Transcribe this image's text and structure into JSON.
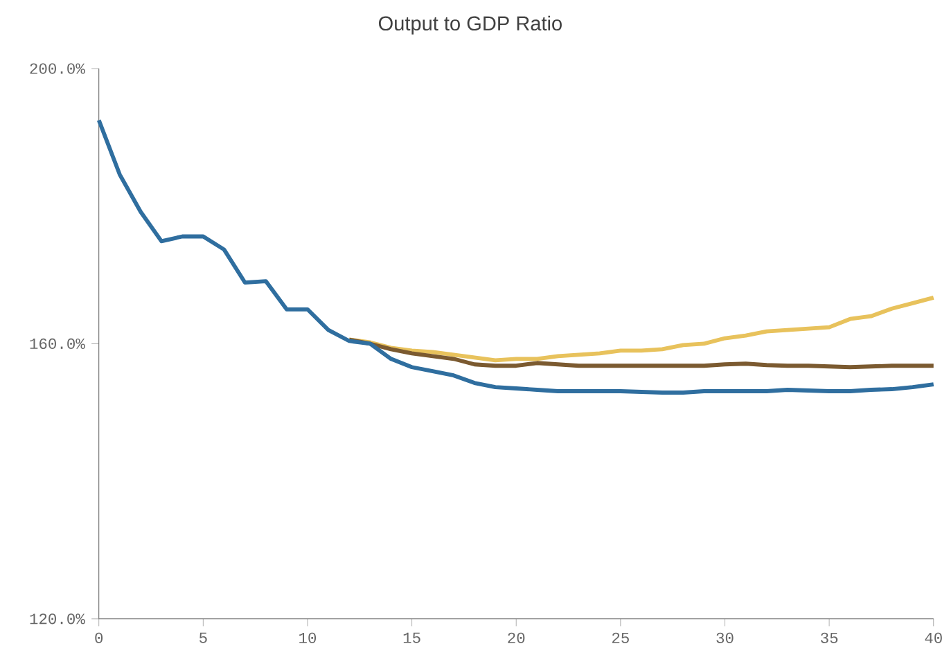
{
  "chart_data": {
    "type": "line",
    "title": "Output to GDP Ratio",
    "x": [
      0,
      1,
      2,
      3,
      4,
      5,
      6,
      7,
      8,
      9,
      10,
      11,
      12,
      13,
      14,
      15,
      16,
      17,
      18,
      19,
      20,
      21,
      22,
      23,
      24,
      25,
      26,
      27,
      28,
      29,
      30,
      31,
      32,
      33,
      34,
      35,
      36,
      37,
      38,
      39,
      40
    ],
    "series": [
      {
        "color": "#e8c25c",
        "values": [
          null,
          null,
          null,
          null,
          null,
          null,
          null,
          null,
          null,
          null,
          null,
          null,
          160.6,
          160.2,
          159.4,
          159,
          158.8,
          158.4,
          158,
          157.6,
          157.8,
          157.8,
          158.2,
          158.4,
          158.6,
          159,
          159,
          159.2,
          159.8,
          160,
          160.8,
          161.2,
          161.8,
          162,
          162.2,
          162.4,
          163.6,
          164,
          165.1,
          165.9,
          166.7
        ]
      },
      {
        "color": "#7b5a30",
        "values": [
          null,
          null,
          null,
          null,
          null,
          null,
          null,
          null,
          null,
          null,
          null,
          null,
          160.6,
          160,
          159.2,
          158.6,
          158.2,
          157.8,
          157,
          156.8,
          156.8,
          157.2,
          157,
          156.8,
          156.8,
          156.8,
          156.8,
          156.8,
          156.8,
          156.8,
          157,
          157.1,
          156.9,
          156.8,
          156.8,
          156.7,
          156.6,
          156.7,
          156.8,
          156.8,
          156.8
        ]
      },
      {
        "color": "#2f6e9f",
        "values": [
          192.5,
          184.6,
          179.2,
          174.9,
          175.6,
          175.6,
          173.7,
          168.9,
          169.1,
          165,
          165,
          162,
          160.4,
          160,
          157.8,
          156.6,
          156,
          155.4,
          154.3,
          153.7,
          153.5,
          153.3,
          153.1,
          153.1,
          153.1,
          153.1,
          153,
          152.9,
          152.9,
          153.1,
          153.1,
          153.1,
          153.1,
          153.3,
          153.2,
          153.1,
          153.1,
          153.3,
          153.4,
          153.7,
          154.1
        ]
      }
    ],
    "xlim": [
      0,
      40
    ],
    "xticks": [
      0,
      5,
      10,
      15,
      20,
      25,
      30,
      35,
      40
    ],
    "ylim": [
      120,
      200
    ],
    "yticks": [
      {
        "value": 120,
        "label": "120.0%"
      },
      {
        "value": 160,
        "label": "160.0%"
      },
      {
        "value": 200,
        "label": "200.0%"
      }
    ],
    "marker": "none",
    "line_style": "solid"
  }
}
